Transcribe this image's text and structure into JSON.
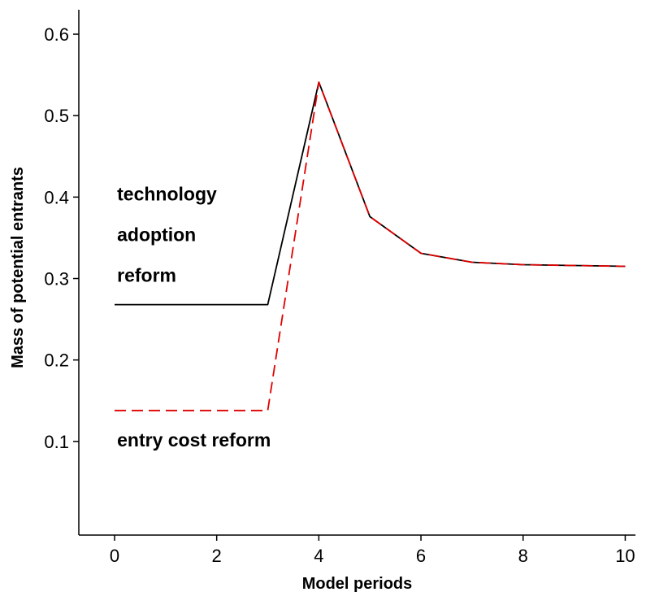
{
  "chart_data": {
    "type": "line",
    "title": "",
    "xlabel": "Model periods",
    "ylabel": "Mass of potential entrants",
    "xlim": [
      -0.7,
      10.2
    ],
    "ylim": [
      -0.015,
      0.63
    ],
    "xticks": [
      0,
      2,
      4,
      6,
      8,
      10
    ],
    "yticks": [
      0.1,
      0.2,
      0.3,
      0.4,
      0.5,
      0.6
    ],
    "xtick_labels": [
      "0",
      "2",
      "4",
      "6",
      "8",
      "10"
    ],
    "ytick_labels": [
      "0.1",
      "0.2",
      "0.3",
      "0.4",
      "0.5",
      "0.6"
    ],
    "grid": false,
    "legend": "none",
    "series": [
      {
        "color": "#000000",
        "style": "solid",
        "x": [
          0,
          1,
          2,
          3,
          4,
          5,
          6,
          7,
          8,
          9,
          10
        ],
        "y": [
          0.268,
          0.268,
          0.268,
          0.268,
          0.541,
          0.376,
          0.331,
          0.32,
          0.317,
          0.316,
          0.315
        ]
      },
      {
        "color": "#e00000",
        "style": "dashed",
        "x": [
          0,
          1,
          2,
          3,
          4,
          5,
          6,
          7,
          8,
          9,
          10
        ],
        "y": [
          0.138,
          0.138,
          0.138,
          0.138,
          0.541,
          0.376,
          0.331,
          0.32,
          0.317,
          0.316,
          0.315
        ]
      }
    ],
    "annotations": [
      {
        "text": "technology",
        "x": 0.05,
        "y": 0.396
      },
      {
        "text": "adoption",
        "x": 0.05,
        "y": 0.346
      },
      {
        "text": "reform",
        "x": 0.05,
        "y": 0.296
      },
      {
        "text": "entry cost reform",
        "x": 0.05,
        "y": 0.094
      }
    ]
  }
}
